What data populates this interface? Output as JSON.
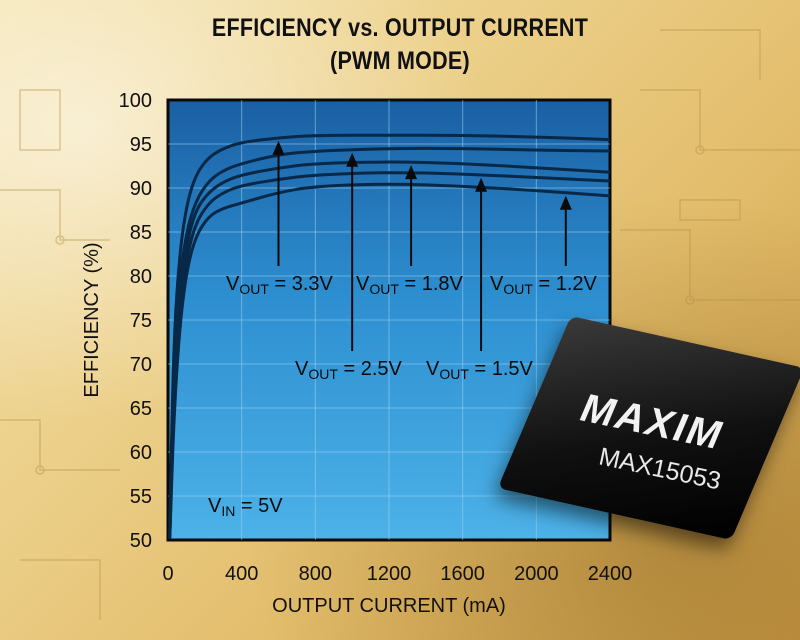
{
  "chart_data": {
    "type": "line",
    "title": "EFFICIENCY vs. OUTPUT CURRENT",
    "subtitle": "(PWM MODE)",
    "xlabel": "OUTPUT CURRENT (mA)",
    "ylabel": "EFFICIENCY (%)",
    "xlim": [
      0,
      2400
    ],
    "ylim": [
      50,
      100
    ],
    "xticks": [
      "0",
      "400",
      "800",
      "1200",
      "1600",
      "2000",
      "2400"
    ],
    "yticks": [
      "50",
      "55",
      "60",
      "65",
      "70",
      "75",
      "80",
      "85",
      "90",
      "95",
      "100"
    ],
    "grid": true,
    "series": [
      {
        "name": "3.3V",
        "x": [
          10,
          30,
          60,
          100,
          150,
          220,
          300,
          400,
          600,
          800,
          1200,
          1600,
          2000,
          2400
        ],
        "y": [
          52,
          72,
          82,
          88,
          91.5,
          93.5,
          94.5,
          95.2,
          95.7,
          96,
          96,
          96,
          95.8,
          95.5
        ]
      },
      {
        "name": "2.5V",
        "x": [
          10,
          30,
          60,
          100,
          150,
          220,
          300,
          400,
          600,
          800,
          1200,
          1600,
          2000,
          2400
        ],
        "y": [
          51,
          69,
          79,
          85,
          88.5,
          90.8,
          92,
          92.8,
          93.8,
          94.2,
          94.5,
          94.5,
          94.3,
          94.2
        ]
      },
      {
        "name": "1.8V",
        "x": [
          10,
          30,
          60,
          100,
          150,
          220,
          300,
          400,
          600,
          800,
          1200,
          1600,
          2000,
          2400
        ],
        "y": [
          50.5,
          67,
          77,
          83.5,
          87.5,
          89.5,
          90.7,
          91.5,
          92.3,
          92.8,
          93,
          92.8,
          92.3,
          91.8
        ]
      },
      {
        "name": "1.5V",
        "x": [
          10,
          30,
          60,
          100,
          150,
          220,
          300,
          400,
          600,
          800,
          1200,
          1600,
          2000,
          2400
        ],
        "y": [
          50.3,
          65,
          75.5,
          82,
          86,
          88.3,
          89.5,
          90.3,
          91,
          91.5,
          91.8,
          91.6,
          91.2,
          90.8
        ]
      },
      {
        "name": "1.2V",
        "x": [
          10,
          30,
          60,
          100,
          150,
          220,
          300,
          400,
          600,
          800,
          1200,
          1600,
          2000,
          2400
        ],
        "y": [
          50.1,
          63,
          73.5,
          80.5,
          84.5,
          86.8,
          87.7,
          88.3,
          89.5,
          90.2,
          90.5,
          90.2,
          89.7,
          89.1
        ]
      }
    ],
    "annotations": [
      {
        "vout": "3.3V",
        "label_prefix": "V",
        "label_sub": "OUT",
        "label_rest": " = 3.3V"
      },
      {
        "vout": "2.5V",
        "label_prefix": "V",
        "label_sub": "OUT",
        "label_rest": " = 2.5V"
      },
      {
        "vout": "1.8V",
        "label_prefix": "V",
        "label_sub": "OUT",
        "label_rest": " = 1.8V"
      },
      {
        "vout": "1.5V",
        "label_prefix": "V",
        "label_sub": "OUT",
        "label_rest": " = 1.5V"
      },
      {
        "vout": "1.2V",
        "label_prefix": "V",
        "label_sub": "OUT",
        "label_rest": " = 1.2V"
      }
    ],
    "vin_label": {
      "prefix": "V",
      "sub": "IN",
      "rest": " = 5V"
    }
  },
  "product": {
    "brand": "MAXIM",
    "part_number": "MAX15053"
  }
}
